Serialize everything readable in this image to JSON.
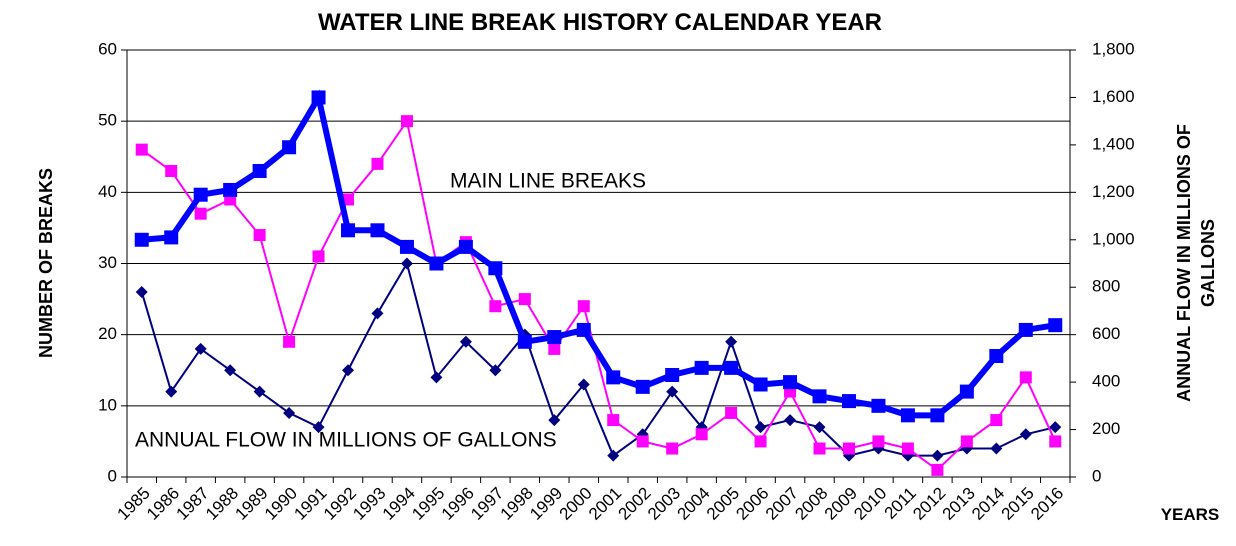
{
  "chart_data": {
    "type": "line",
    "title": "WATER LINE BREAK HISTORY CALENDAR YEAR",
    "ylabel": "NUMBER OF BREAKS",
    "y2label": [
      "ANNUAL  FLOW IN MILLIONS OF",
      "GALLONS"
    ],
    "xlabel": "YEARS",
    "annotations": [
      "MAIN LINE BREAKS",
      "ANNUAL FLOW IN MILLIONS OF GALLONS"
    ],
    "categories": [
      "1985",
      "1986",
      "1987",
      "1988",
      "1989",
      "1990",
      "1991",
      "1992",
      "1993",
      "1994",
      "1995",
      "1996",
      "1997",
      "1998",
      "1999",
      "2000",
      "2001",
      "2002",
      "2003",
      "2004",
      "2005",
      "2006",
      "2007",
      "2008",
      "2009",
      "2010",
      "2011",
      "2012",
      "2013",
      "2014",
      "2015",
      "2016"
    ],
    "series": [
      {
        "color": "#000080",
        "marker": "diamond",
        "axis": "y",
        "values": [
          26,
          12,
          18,
          15,
          12,
          9,
          7,
          15,
          23,
          30,
          14,
          19,
          15,
          20,
          8,
          13,
          3,
          6,
          12,
          7,
          19,
          7,
          8,
          7,
          3,
          4,
          3,
          3,
          4,
          4,
          6,
          7
        ]
      },
      {
        "color": "#ff00ff",
        "marker": "square",
        "axis": "y",
        "values": [
          46,
          43,
          37,
          39,
          34,
          19,
          31,
          39,
          44,
          50,
          30,
          33,
          24,
          25,
          18,
          24,
          8,
          5,
          4,
          6,
          9,
          5,
          12,
          4,
          4,
          5,
          4,
          1,
          5,
          8,
          14,
          5
        ]
      },
      {
        "color": "#0000ff",
        "marker": "square",
        "axis": "y2",
        "values": [
          1000,
          1010,
          1190,
          1210,
          1290,
          1390,
          1600,
          1040,
          1040,
          970,
          900,
          970,
          880,
          570,
          590,
          620,
          420,
          380,
          430,
          460,
          460,
          390,
          400,
          340,
          320,
          300,
          260,
          260,
          360,
          510,
          620,
          640
        ]
      }
    ],
    "ylim": [
      0,
      60
    ],
    "yticks": [
      0,
      10,
      20,
      30,
      40,
      50,
      60
    ],
    "y2lim": [
      0,
      1800
    ],
    "y2ticks": [
      0,
      200,
      400,
      600,
      800,
      {
        "value": 1000,
        "label": "1,000"
      },
      {
        "value": 1200,
        "label": "1,200"
      },
      {
        "value": 1400,
        "label": "1,400"
      },
      {
        "value": 1600,
        "label": "1,600"
      },
      {
        "value": 1800,
        "label": "1,800"
      }
    ],
    "grid": true
  }
}
